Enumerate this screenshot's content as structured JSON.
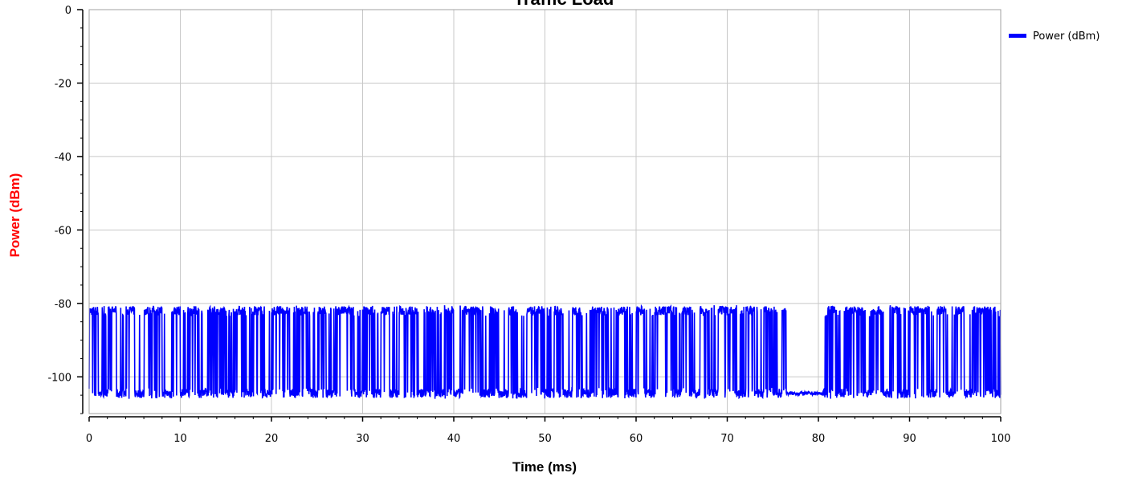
{
  "chart_data": {
    "type": "line",
    "title": "Traffic Load",
    "xlabel": "Time (ms)",
    "ylabel": "Power (dBm)",
    "xlim": [
      0,
      100
    ],
    "ylim": [
      -110,
      0
    ],
    "x_ticks": [
      0,
      10,
      20,
      30,
      40,
      50,
      60,
      70,
      80,
      90,
      100
    ],
    "x_tick_labels": [
      "0",
      "10",
      "20",
      "30",
      "40",
      "50",
      "60",
      "70",
      "80",
      "90",
      "100"
    ],
    "y_ticks": [
      0,
      -20,
      -40,
      -60,
      -80,
      -100
    ],
    "y_tick_labels": [
      "0",
      "-20",
      "-40",
      "-60",
      "-80",
      "-100"
    ],
    "grid": true,
    "legend_position": "top-right",
    "ylabel_color": "#ff0000",
    "series": [
      {
        "name": "Power (dBm)",
        "color": "#0000ff",
        "high_level": -82,
        "low_level": -104.5,
        "quiet_interval": [
          76.5,
          80.5
        ],
        "x": [
          0,
          1,
          2,
          3,
          4,
          5,
          6,
          7,
          8,
          9,
          10,
          11,
          12,
          13,
          14,
          15,
          16,
          17,
          18,
          19,
          20,
          21,
          22,
          23,
          24,
          25,
          26,
          27,
          28,
          29,
          30,
          31,
          32,
          33,
          34,
          35,
          36,
          37,
          38,
          39,
          40,
          41,
          42,
          43,
          44,
          45,
          46,
          47,
          48,
          49,
          50,
          51,
          52,
          53,
          54,
          55,
          56,
          57,
          58,
          59,
          60,
          61,
          62,
          63,
          64,
          65,
          66,
          67,
          68,
          69,
          70,
          71,
          72,
          73,
          74,
          75,
          76,
          77,
          78,
          79,
          80,
          81,
          82,
          83,
          84,
          85,
          86,
          87,
          88,
          89,
          90,
          91,
          92,
          93,
          94,
          95,
          96,
          97,
          98,
          99,
          100
        ],
        "values": [
          -82,
          -105,
          -82,
          -104,
          -82,
          -105,
          -82,
          -82,
          -104,
          -82,
          -105,
          -82,
          -104,
          -82,
          -82,
          -105,
          -82,
          -104,
          -82,
          -105,
          -82,
          -82,
          -104,
          -82,
          -105,
          -82,
          -104,
          -82,
          -82,
          -105,
          -82,
          -104,
          -82,
          -105,
          -82,
          -82,
          -104,
          -82,
          -105,
          -82,
          -104,
          -82,
          -82,
          -105,
          -82,
          -104,
          -82,
          -105,
          -82,
          -82,
          -104,
          -82,
          -105,
          -82,
          -104,
          -82,
          -82,
          -105,
          -82,
          -104,
          -82,
          -105,
          -82,
          -82,
          -104,
          -82,
          -105,
          -82,
          -104,
          -82,
          -82,
          -105,
          -82,
          -104,
          -82,
          -105,
          -82,
          -104,
          -104.5,
          -104.5,
          -104.5,
          -82,
          -104,
          -82,
          -82,
          -105,
          -82,
          -104,
          -82,
          -105,
          -82,
          -82,
          -104,
          -82,
          -105,
          -82,
          -104,
          -82,
          -82,
          -105,
          -82
        ]
      }
    ]
  }
}
